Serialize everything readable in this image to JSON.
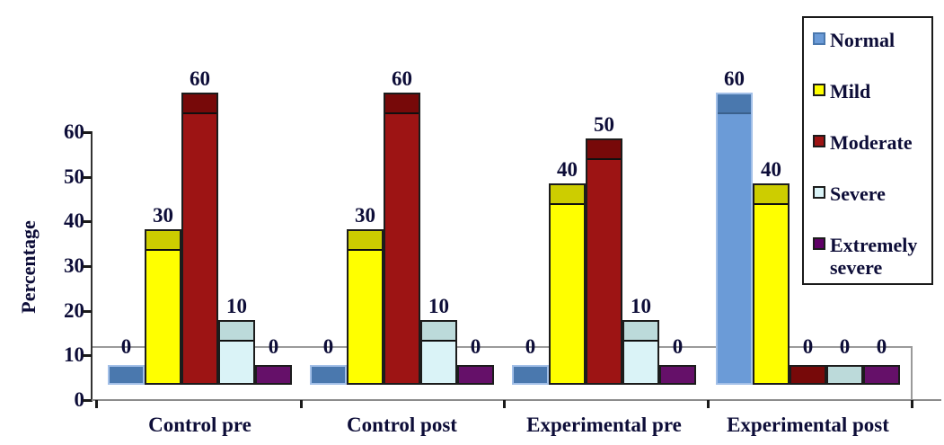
{
  "chart_data": {
    "type": "bar",
    "title": "",
    "xlabel": "",
    "ylabel": "Percentage",
    "categories": [
      "Control pre",
      "Control post",
      "Experimental pre",
      "Experimental post"
    ],
    "series": [
      {
        "name": "Normal",
        "values": [
          0,
          0,
          0,
          60
        ],
        "color": "#6b9bd7",
        "top_color": "#4a78ae",
        "border_color": "#a3c0e8",
        "edge_color": "#3a608c"
      },
      {
        "name": "Mild",
        "values": [
          30,
          30,
          40,
          40
        ],
        "color": "#ffff00",
        "top_color": "#cdcd00",
        "border_color": "#1c1c1c",
        "edge_color": "#101010"
      },
      {
        "name": "Moderate",
        "values": [
          60,
          60,
          50,
          0
        ],
        "color": "#9d1414",
        "top_color": "#770909",
        "border_color": "#1c1c1c",
        "edge_color": "#101010"
      },
      {
        "name": "Severe",
        "values": [
          10,
          10,
          10,
          0
        ],
        "color": "#daf3f7",
        "top_color": "#bcdada",
        "border_color": "#1c1c1c",
        "edge_color": "#101010"
      },
      {
        "name": "Extremely severe",
        "values": [
          0,
          0,
          0,
          0
        ],
        "color": "#5f0066",
        "top_color": "#651069",
        "border_color": "#1c1c1c",
        "edge_color": "#101010"
      }
    ],
    "y_ticks": [
      0,
      10,
      20,
      30,
      40,
      50,
      60
    ],
    "ylim": [
      0,
      60
    ],
    "bar_value_labels": true,
    "zero_bars_shown_as_stubs": true,
    "grid": false,
    "legend_position": "right",
    "style": "3d-effect"
  },
  "legend": {
    "items": [
      "Normal",
      "Mild",
      "Moderate",
      "Severe",
      "Extremely severe"
    ]
  },
  "colors": {
    "background": "#ffffff",
    "text": "#0d0d38",
    "y_axis_line": "#333333",
    "x_axis_line": "#8c8c8c",
    "floor_line": "#9a9a9a",
    "legend_border": "#1a1a1a"
  }
}
